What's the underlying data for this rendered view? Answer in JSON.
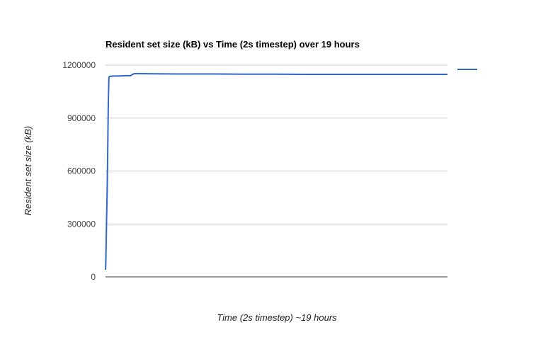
{
  "chart_data": {
    "type": "line",
    "title": "Resident set size (kB) vs Time (2s timestep) over 19 hours",
    "xlabel": "Time (2s timestep) ~19 hours",
    "ylabel": "Resident set size (kB)",
    "ylim": [
      0,
      1200000
    ],
    "yticks": [
      "0",
      "300000",
      "600000",
      "900000",
      "1200000"
    ],
    "ytick_values": [
      0,
      300000,
      600000,
      900000,
      1200000
    ],
    "xlim": [
      0,
      34200
    ],
    "x_ticks_shown": false,
    "grid": true,
    "legend_position": "right",
    "series": [
      {
        "color": "#3366cc",
        "x": [
          0,
          20,
          60,
          100,
          160,
          220,
          280,
          340,
          400,
          440,
          500,
          560,
          700,
          1000,
          1500,
          2000,
          2500,
          2700,
          2900,
          3500,
          5000,
          8000,
          11000,
          14000,
          17000,
          20000,
          23000,
          26000,
          29000,
          32000,
          34200
        ],
        "y": [
          40000,
          60000,
          160000,
          300000,
          480000,
          700000,
          1000000,
          1130000,
          1135000,
          1137000,
          1137000,
          1137000,
          1138000,
          1138000,
          1139000,
          1140000,
          1140000,
          1148000,
          1152000,
          1152000,
          1151000,
          1150000,
          1150000,
          1149000,
          1149000,
          1148000,
          1148000,
          1148000,
          1148000,
          1148000,
          1148000
        ]
      }
    ]
  }
}
